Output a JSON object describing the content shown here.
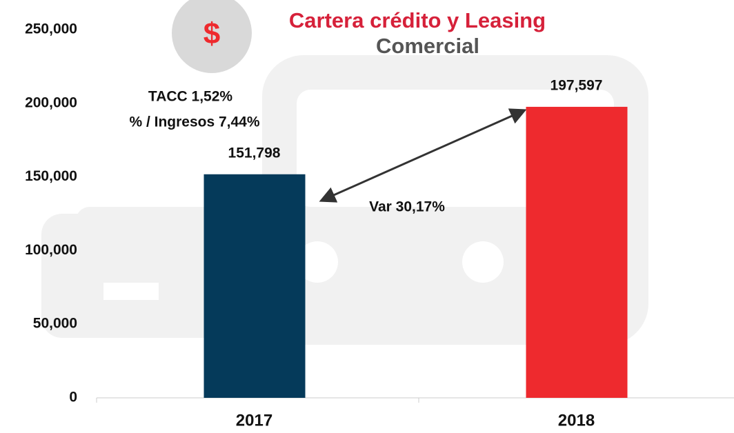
{
  "chart_data": {
    "type": "bar",
    "title": "Cartera crédito y Leasing",
    "subtitle": "Comercial",
    "icon": "$",
    "categories": [
      "2017",
      "2018"
    ],
    "values": [
      151798,
      197597
    ],
    "value_labels": [
      "151,798",
      "197,597"
    ],
    "colors": [
      "#053a5a",
      "#ee2a2e"
    ],
    "ylim": [
      0,
      250000
    ],
    "yticks": [
      0,
      {
        "value": 50000,
        "label": "50,000"
      },
      {
        "value": 100000,
        "label": "100,000"
      },
      {
        "value": 150000,
        "label": "150,000"
      },
      {
        "value": 200000,
        "label": "200,000"
      },
      {
        "value": 250000,
        "label": "250,000"
      }
    ],
    "grid": false,
    "annotations": [
      "TACC 1,52%",
      "% / Ingresos 7,44%",
      "Var 30,17%"
    ]
  }
}
